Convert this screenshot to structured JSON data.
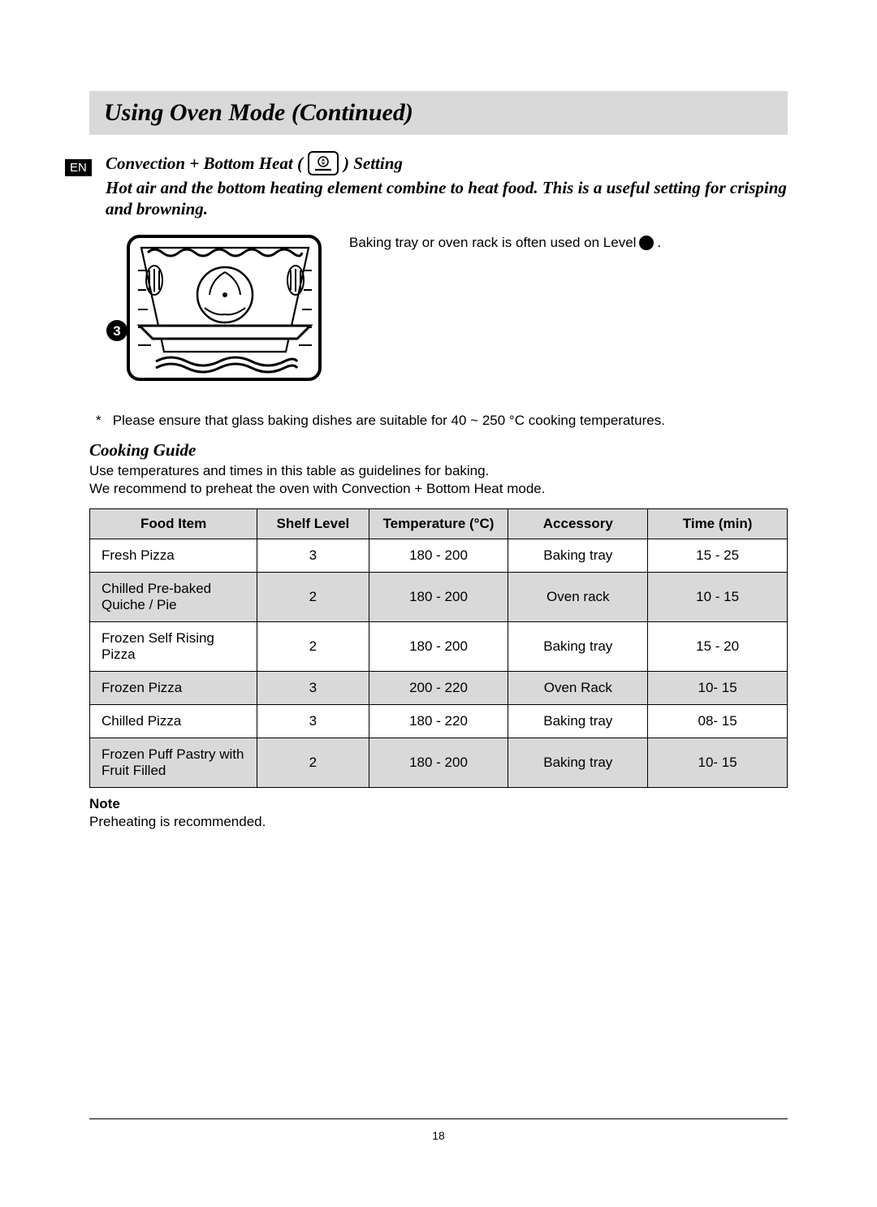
{
  "lang_badge": "EN",
  "title": "Using Oven Mode (Continued)",
  "subheading_before": "Convection + Bottom Heat (",
  "subheading_after": ") Setting",
  "description": "Hot air and the bottom heating element combine to heat food. This is a useful setting for crisping and browning.",
  "illustration": {
    "caption_before": "Baking tray or oven rack is often used on Level",
    "caption_after": ".",
    "level_badge_number": "3"
  },
  "footnote_marker": "*",
  "footnote_text": "Please ensure that glass baking dishes are suitable for 40 ~ 250 °C cooking temperatures.",
  "cooking_guide": {
    "heading": "Cooking Guide",
    "intro_line1": "Use temperatures and times in this table as guidelines for baking.",
    "intro_line2": "We recommend to preheat the oven with Convection + Bottom Heat mode.",
    "columns": [
      "Food Item",
      "Shelf Level",
      "Temperature (°C)",
      "Accessory",
      "Time (min)"
    ],
    "rows": [
      {
        "food": "Fresh Pizza",
        "shelf": "3",
        "temp": "180 - 200",
        "acc": "Baking tray",
        "time": "15 - 25",
        "shaded": false
      },
      {
        "food": "Chilled Pre-baked Quiche / Pie",
        "shelf": "2",
        "temp": "180 - 200",
        "acc": "Oven rack",
        "time": "10 - 15",
        "shaded": true
      },
      {
        "food": "Frozen Self Rising Pizza",
        "shelf": "2",
        "temp": "180 - 200",
        "acc": "Baking tray",
        "time": "15 - 20",
        "shaded": false
      },
      {
        "food": "Frozen Pizza",
        "shelf": "3",
        "temp": "200 - 220",
        "acc": "Oven Rack",
        "time": "10- 15",
        "shaded": true
      },
      {
        "food": "Chilled Pizza",
        "shelf": "3",
        "temp": "180 - 220",
        "acc": "Baking tray",
        "time": "08- 15",
        "shaded": false
      },
      {
        "food": "Frozen Puff Pastry with Fruit Filled",
        "shelf": "2",
        "temp": "180 - 200",
        "acc": "Baking tray",
        "time": "10- 15",
        "shaded": true
      }
    ]
  },
  "note": {
    "heading": "Note",
    "body": "Preheating is recommended."
  },
  "page_number": "18",
  "colors": {
    "header_bg": "#d9d9d9",
    "row_shade": "#d9d9d9",
    "text": "#000000",
    "bg": "#ffffff"
  }
}
